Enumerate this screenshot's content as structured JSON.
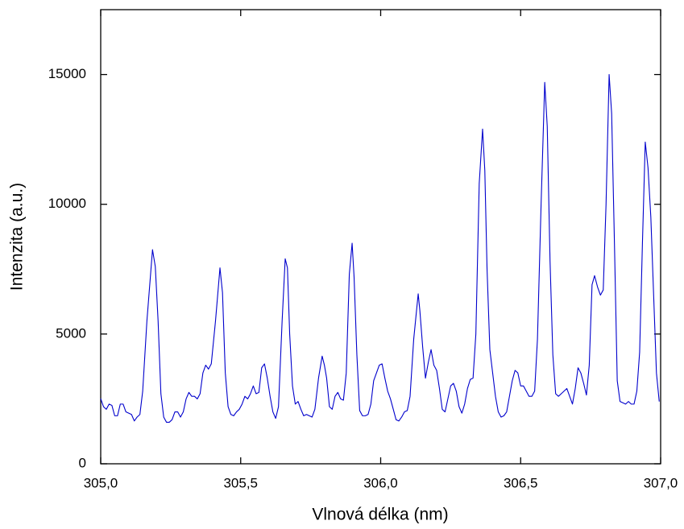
{
  "chart_data": {
    "type": "line",
    "x_label": "Vlnová délka (nm)",
    "y_label": "Intenzita (a.u.)",
    "color": "#0000cc",
    "xlim": [
      305.0,
      307.0
    ],
    "ylim": [
      0,
      17500
    ],
    "xticks": [
      {
        "value": 305.0,
        "label": "305,0"
      },
      {
        "value": 305.5,
        "label": "305,5"
      },
      {
        "value": 306.0,
        "label": "306,0"
      },
      {
        "value": 306.5,
        "label": "306,5"
      },
      {
        "value": 307.0,
        "label": "307,0"
      }
    ],
    "yticks": [
      0,
      5000,
      10000,
      15000
    ],
    "x": [
      305.0,
      305.01,
      305.02,
      305.03,
      305.04,
      305.05,
      305.06,
      305.07,
      305.08,
      305.09,
      305.1,
      305.11,
      305.12,
      305.13,
      305.14,
      305.15,
      305.165,
      305.185,
      305.195,
      305.205,
      305.215,
      305.225,
      305.235,
      305.245,
      305.255,
      305.265,
      305.275,
      305.285,
      305.295,
      305.305,
      305.315,
      305.325,
      305.335,
      305.345,
      305.355,
      305.365,
      305.375,
      305.385,
      305.395,
      305.41,
      305.426,
      305.435,
      305.445,
      305.455,
      305.465,
      305.475,
      305.485,
      305.495,
      305.505,
      305.515,
      305.525,
      305.535,
      305.545,
      305.555,
      305.565,
      305.575,
      305.585,
      305.595,
      305.605,
      305.615,
      305.625,
      305.635,
      305.648,
      305.659,
      305.667,
      305.675,
      305.685,
      305.695,
      305.705,
      305.715,
      305.725,
      305.735,
      305.745,
      305.755,
      305.765,
      305.778,
      305.791,
      305.799,
      305.807,
      305.817,
      305.827,
      305.837,
      305.847,
      305.857,
      305.867,
      305.877,
      305.888,
      305.898,
      305.905,
      305.915,
      305.925,
      305.935,
      305.945,
      305.955,
      305.965,
      305.975,
      305.985,
      305.995,
      306.005,
      306.015,
      306.025,
      306.035,
      306.045,
      306.055,
      306.065,
      306.075,
      306.085,
      306.095,
      306.105,
      306.118,
      306.134,
      306.14,
      306.15,
      306.16,
      306.17,
      306.18,
      306.19,
      306.2,
      306.21,
      306.22,
      306.23,
      306.24,
      306.25,
      306.26,
      306.27,
      306.28,
      306.29,
      306.3,
      306.31,
      306.32,
      306.33,
      306.34,
      306.352,
      306.364,
      306.372,
      306.38,
      306.39,
      306.4,
      306.41,
      306.42,
      306.43,
      306.44,
      306.45,
      306.46,
      306.47,
      306.48,
      306.49,
      306.5,
      306.51,
      306.52,
      306.53,
      306.54,
      306.55,
      306.56,
      306.573,
      306.586,
      306.595,
      306.605,
      306.615,
      306.625,
      306.635,
      306.645,
      306.655,
      306.665,
      306.675,
      306.685,
      306.695,
      306.705,
      306.715,
      306.725,
      306.735,
      306.745,
      306.755,
      306.764,
      306.775,
      306.785,
      306.795,
      306.805,
      306.816,
      306.825,
      306.835,
      306.845,
      306.855,
      306.865,
      306.875,
      306.885,
      306.895,
      306.905,
      306.915,
      306.925,
      306.935,
      306.945,
      306.955,
      306.965,
      306.975,
      306.985,
      306.995
    ],
    "values": [
      2510,
      2200,
      2100,
      2300,
      2250,
      1850,
      1850,
      2300,
      2300,
      2000,
      1950,
      1900,
      1650,
      1800,
      1900,
      2800,
      5500,
      8250,
      7600,
      5500,
      2700,
      1800,
      1600,
      1600,
      1700,
      2000,
      2000,
      1800,
      2000,
      2500,
      2750,
      2600,
      2600,
      2500,
      2700,
      3500,
      3800,
      3650,
      3850,
      5500,
      7550,
      6600,
      3500,
      2200,
      1900,
      1850,
      2000,
      2100,
      2300,
      2600,
      2500,
      2700,
      3000,
      2700,
      2750,
      3700,
      3850,
      3300,
      2600,
      2000,
      1750,
      2200,
      5500,
      7900,
      7550,
      5000,
      3000,
      2300,
      2400,
      2100,
      1850,
      1900,
      1850,
      1800,
      2100,
      3300,
      4150,
      3800,
      3300,
      2200,
      2100,
      2600,
      2750,
      2500,
      2450,
      3500,
      7300,
      8500,
      7200,
      4200,
      2050,
      1850,
      1850,
      1900,
      2300,
      3200,
      3500,
      3800,
      3850,
      3300,
      2800,
      2500,
      2100,
      1700,
      1650,
      1800,
      2000,
      2050,
      2600,
      4800,
      6550,
      5900,
      4500,
      3300,
      3900,
      4400,
      3800,
      3600,
      2900,
      2100,
      2000,
      2500,
      3000,
      3100,
      2800,
      2200,
      1950,
      2300,
      2900,
      3250,
      3300,
      5000,
      10800,
      12900,
      11300,
      7500,
      4400,
      3500,
      2600,
      2000,
      1800,
      1850,
      2000,
      2600,
      3200,
      3600,
      3500,
      3000,
      3000,
      2800,
      2600,
      2600,
      2800,
      4800,
      10000,
      14700,
      13000,
      7800,
      4200,
      2700,
      2600,
      2700,
      2800,
      2900,
      2600,
      2300,
      2900,
      3700,
      3500,
      3100,
      2650,
      3800,
      6900,
      7250,
      6800,
      6500,
      6700,
      10000,
      15000,
      13500,
      8500,
      3200,
      2400,
      2350,
      2300,
      2400,
      2300,
      2300,
      2800,
      4300,
      8500,
      12400,
      11400,
      9500,
      6500,
      3500,
      2400
    ]
  }
}
